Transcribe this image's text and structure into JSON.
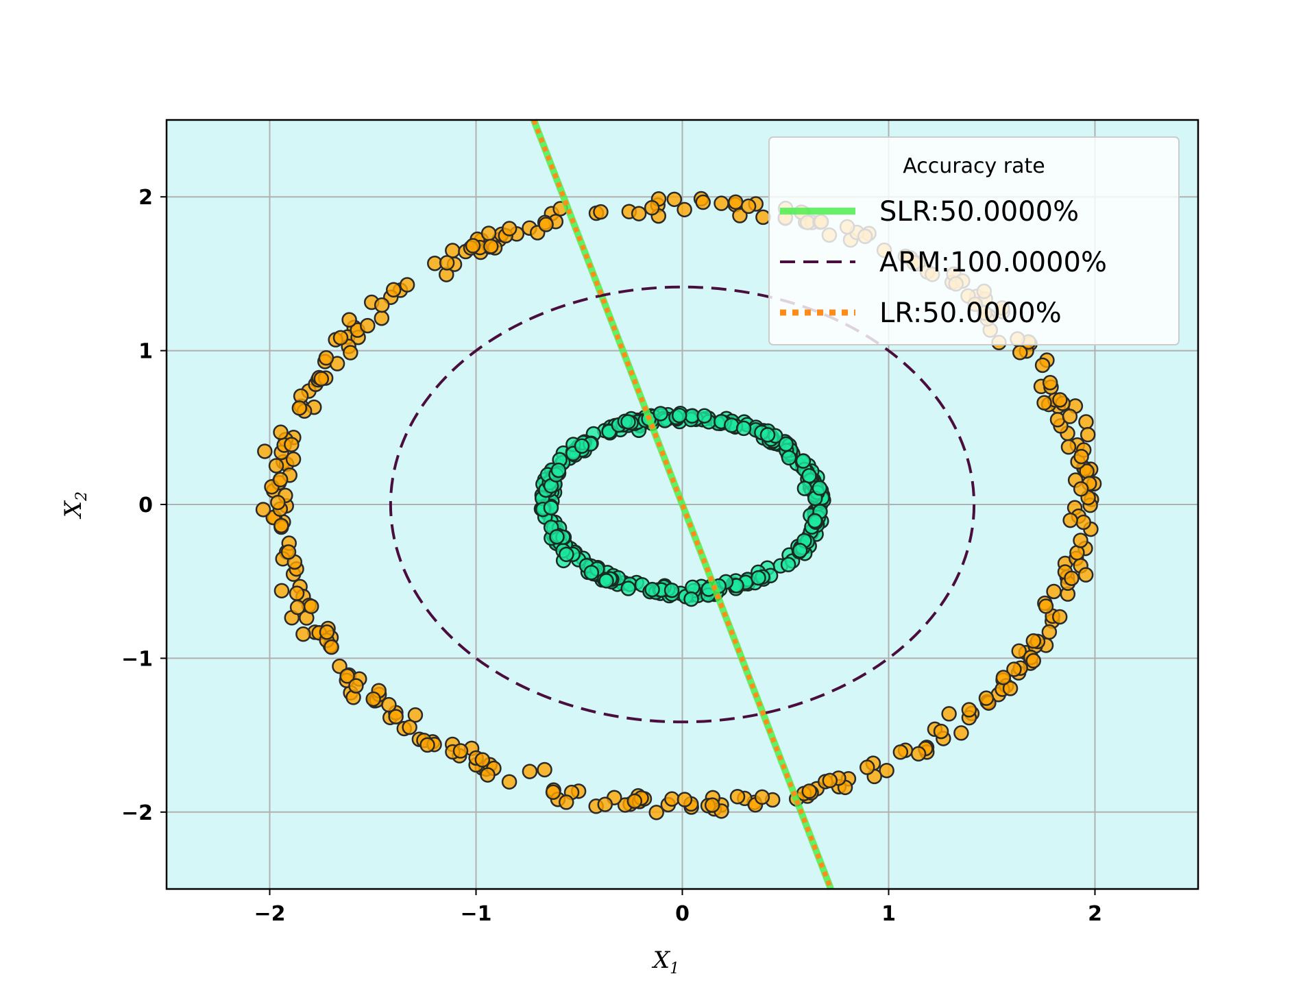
{
  "chart_data": {
    "type": "scatter",
    "title": "",
    "xlabel": "X",
    "xlabel_sub": "1",
    "ylabel": "X",
    "ylabel_sub": "2",
    "xlim": [
      -2.5,
      2.5
    ],
    "ylim": [
      -2.5,
      2.5
    ],
    "x_ticks": [
      -2,
      -1,
      0,
      1,
      2
    ],
    "y_ticks": [
      -2,
      -1,
      0,
      1,
      2
    ],
    "x_tick_labels": [
      "−2",
      "−1",
      "0",
      "1",
      "2"
    ],
    "y_tick_labels": [
      "−2",
      "−1",
      "0",
      "1",
      "2"
    ],
    "grid": true,
    "background_color": "#d6f7f7",
    "series": [
      {
        "kind": "scatter",
        "color": "#ffa500",
        "edge_color": "#2a2a2a",
        "shape": "ring",
        "approx_radius": 1.95,
        "approx_points": 360
      },
      {
        "kind": "scatter",
        "color": "#1de9a0",
        "edge_color": "#1a2a22",
        "shape": "ring",
        "approx_radius_x": 0.66,
        "approx_radius_y": 0.57,
        "approx_points": 360
      },
      {
        "name": "SLR:50.0000%",
        "kind": "line",
        "style": "solid",
        "color": "#4cf04c",
        "x": [
          -0.72,
          0.72
        ],
        "y": [
          2.5,
          -2.5
        ]
      },
      {
        "name": "ARM:100.0000%",
        "kind": "ellipse",
        "style": "dashed",
        "color": "#4a0e3e",
        "center": [
          0,
          0
        ],
        "radius_x": 1.414,
        "radius_y": 1.414
      },
      {
        "name": "LR:50.0000%",
        "kind": "line",
        "style": "dotted",
        "color": "#ff8c1a",
        "x": [
          -0.72,
          0.72
        ],
        "y": [
          2.5,
          -2.5
        ]
      }
    ],
    "legend": {
      "title": "Accuracy rate",
      "position": "top-right",
      "entries": [
        "SLR:50.0000%",
        "ARM:100.0000%",
        "LR:50.0000%"
      ]
    }
  }
}
